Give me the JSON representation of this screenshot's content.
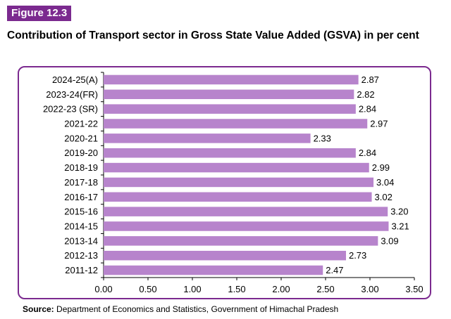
{
  "figure_label": "Figure 12.3",
  "title": "Contribution of Transport sector in Gross State Value Added (GSVA) in per cent",
  "source": {
    "label": "Source:",
    "text": " Department of Economics and Statistics, Government of Himachal Pradesh"
  },
  "chart_data": {
    "type": "bar",
    "orientation": "horizontal",
    "categories": [
      "2024-25(A)",
      "2023-24(FR)",
      "2022-23 (SR)",
      "2021-22",
      "2020-21",
      "2019-20",
      "2018-19",
      "2017-18",
      "2016-17",
      "2015-16",
      "2014-15",
      "2013-14",
      "2012-13",
      "2011-12"
    ],
    "values": [
      2.87,
      2.82,
      2.84,
      2.97,
      2.33,
      2.84,
      2.99,
      3.04,
      3.02,
      3.2,
      3.21,
      3.09,
      2.73,
      2.47
    ],
    "value_labels": [
      "2.87",
      "2.82",
      "2.84",
      "2.97",
      "2.33",
      "2.84",
      "2.99",
      "3.04",
      "3.02",
      "3.20",
      "3.21",
      "3.09",
      "2.73",
      "2.47"
    ],
    "xlim": [
      0,
      3.5
    ],
    "xticks": [
      "0.00",
      "0.50",
      "1.00",
      "1.50",
      "2.00",
      "2.50",
      "3.00",
      "3.50"
    ],
    "xlabel": "",
    "ylabel": "",
    "grid": false,
    "bar_color": "#b784cc"
  }
}
